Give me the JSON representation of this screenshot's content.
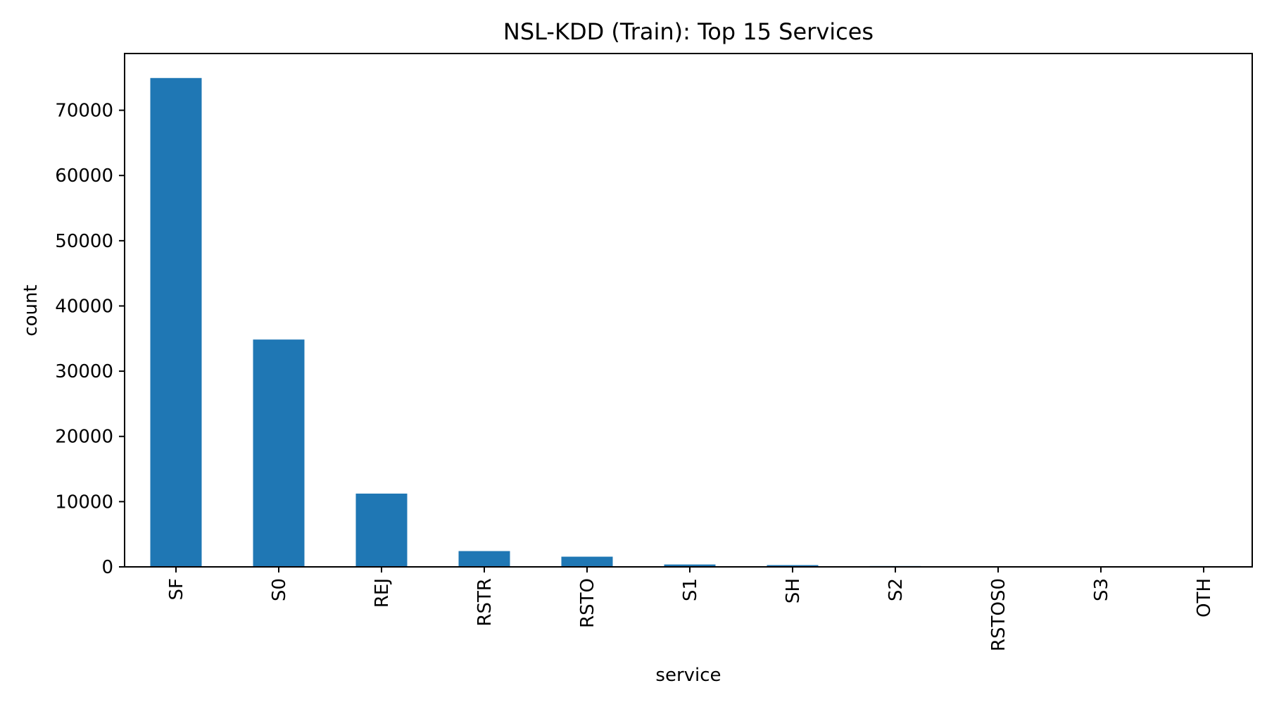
{
  "chart_data": {
    "type": "bar",
    "title": "NSL-KDD (Train): Top 15 Services",
    "xlabel": "service",
    "ylabel": "count",
    "categories": [
      "SF",
      "S0",
      "REJ",
      "RSTR",
      "RSTO",
      "S1",
      "SH",
      "S2",
      "RSTOS0",
      "S3",
      "OTH"
    ],
    "values": [
      74945,
      34851,
      11233,
      2421,
      1562,
      365,
      271,
      127,
      103,
      49,
      46
    ],
    "ylim": [
      0,
      78700
    ],
    "yticks": [
      0,
      10000,
      20000,
      30000,
      40000,
      50000,
      60000,
      70000
    ],
    "grid": false,
    "legend": "none",
    "bar_color": "#1f77b4"
  }
}
